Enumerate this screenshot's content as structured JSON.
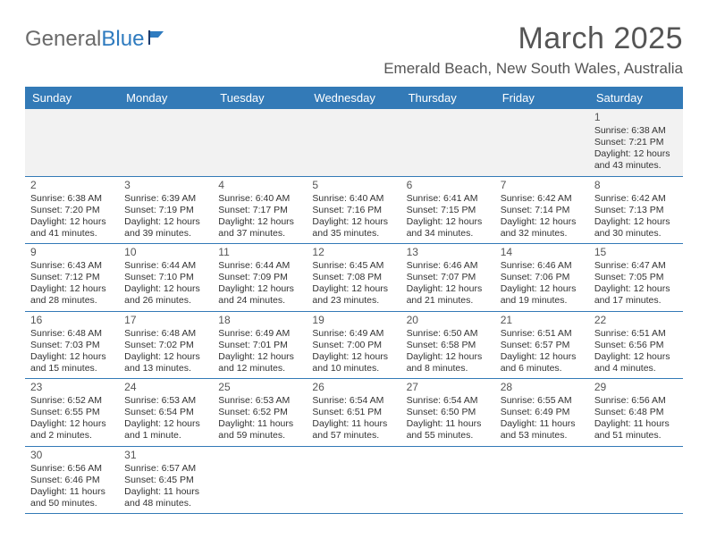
{
  "logo": {
    "word1": "General",
    "word2": "Blue"
  },
  "title": "March 2025",
  "location": "Emerald Beach, New South Wales, Australia",
  "colors": {
    "header_bg": "#337ab7",
    "header_text": "#ffffff",
    "border": "#337ab7",
    "title_text": "#555555",
    "body_text": "#333333",
    "logo_gray": "#6a6a6a",
    "logo_blue": "#2f7bbf",
    "blank_bg": "#f2f2f2"
  },
  "day_headers": [
    "Sunday",
    "Monday",
    "Tuesday",
    "Wednesday",
    "Thursday",
    "Friday",
    "Saturday"
  ],
  "weeks": [
    [
      null,
      null,
      null,
      null,
      null,
      null,
      {
        "n": "1",
        "sr": "Sunrise: 6:38 AM",
        "ss": "Sunset: 7:21 PM",
        "dl": "Daylight: 12 hours and 43 minutes."
      }
    ],
    [
      {
        "n": "2",
        "sr": "Sunrise: 6:38 AM",
        "ss": "Sunset: 7:20 PM",
        "dl": "Daylight: 12 hours and 41 minutes."
      },
      {
        "n": "3",
        "sr": "Sunrise: 6:39 AM",
        "ss": "Sunset: 7:19 PM",
        "dl": "Daylight: 12 hours and 39 minutes."
      },
      {
        "n": "4",
        "sr": "Sunrise: 6:40 AM",
        "ss": "Sunset: 7:17 PM",
        "dl": "Daylight: 12 hours and 37 minutes."
      },
      {
        "n": "5",
        "sr": "Sunrise: 6:40 AM",
        "ss": "Sunset: 7:16 PM",
        "dl": "Daylight: 12 hours and 35 minutes."
      },
      {
        "n": "6",
        "sr": "Sunrise: 6:41 AM",
        "ss": "Sunset: 7:15 PM",
        "dl": "Daylight: 12 hours and 34 minutes."
      },
      {
        "n": "7",
        "sr": "Sunrise: 6:42 AM",
        "ss": "Sunset: 7:14 PM",
        "dl": "Daylight: 12 hours and 32 minutes."
      },
      {
        "n": "8",
        "sr": "Sunrise: 6:42 AM",
        "ss": "Sunset: 7:13 PM",
        "dl": "Daylight: 12 hours and 30 minutes."
      }
    ],
    [
      {
        "n": "9",
        "sr": "Sunrise: 6:43 AM",
        "ss": "Sunset: 7:12 PM",
        "dl": "Daylight: 12 hours and 28 minutes."
      },
      {
        "n": "10",
        "sr": "Sunrise: 6:44 AM",
        "ss": "Sunset: 7:10 PM",
        "dl": "Daylight: 12 hours and 26 minutes."
      },
      {
        "n": "11",
        "sr": "Sunrise: 6:44 AM",
        "ss": "Sunset: 7:09 PM",
        "dl": "Daylight: 12 hours and 24 minutes."
      },
      {
        "n": "12",
        "sr": "Sunrise: 6:45 AM",
        "ss": "Sunset: 7:08 PM",
        "dl": "Daylight: 12 hours and 23 minutes."
      },
      {
        "n": "13",
        "sr": "Sunrise: 6:46 AM",
        "ss": "Sunset: 7:07 PM",
        "dl": "Daylight: 12 hours and 21 minutes."
      },
      {
        "n": "14",
        "sr": "Sunrise: 6:46 AM",
        "ss": "Sunset: 7:06 PM",
        "dl": "Daylight: 12 hours and 19 minutes."
      },
      {
        "n": "15",
        "sr": "Sunrise: 6:47 AM",
        "ss": "Sunset: 7:05 PM",
        "dl": "Daylight: 12 hours and 17 minutes."
      }
    ],
    [
      {
        "n": "16",
        "sr": "Sunrise: 6:48 AM",
        "ss": "Sunset: 7:03 PM",
        "dl": "Daylight: 12 hours and 15 minutes."
      },
      {
        "n": "17",
        "sr": "Sunrise: 6:48 AM",
        "ss": "Sunset: 7:02 PM",
        "dl": "Daylight: 12 hours and 13 minutes."
      },
      {
        "n": "18",
        "sr": "Sunrise: 6:49 AM",
        "ss": "Sunset: 7:01 PM",
        "dl": "Daylight: 12 hours and 12 minutes."
      },
      {
        "n": "19",
        "sr": "Sunrise: 6:49 AM",
        "ss": "Sunset: 7:00 PM",
        "dl": "Daylight: 12 hours and 10 minutes."
      },
      {
        "n": "20",
        "sr": "Sunrise: 6:50 AM",
        "ss": "Sunset: 6:58 PM",
        "dl": "Daylight: 12 hours and 8 minutes."
      },
      {
        "n": "21",
        "sr": "Sunrise: 6:51 AM",
        "ss": "Sunset: 6:57 PM",
        "dl": "Daylight: 12 hours and 6 minutes."
      },
      {
        "n": "22",
        "sr": "Sunrise: 6:51 AM",
        "ss": "Sunset: 6:56 PM",
        "dl": "Daylight: 12 hours and 4 minutes."
      }
    ],
    [
      {
        "n": "23",
        "sr": "Sunrise: 6:52 AM",
        "ss": "Sunset: 6:55 PM",
        "dl": "Daylight: 12 hours and 2 minutes."
      },
      {
        "n": "24",
        "sr": "Sunrise: 6:53 AM",
        "ss": "Sunset: 6:54 PM",
        "dl": "Daylight: 12 hours and 1 minute."
      },
      {
        "n": "25",
        "sr": "Sunrise: 6:53 AM",
        "ss": "Sunset: 6:52 PM",
        "dl": "Daylight: 11 hours and 59 minutes."
      },
      {
        "n": "26",
        "sr": "Sunrise: 6:54 AM",
        "ss": "Sunset: 6:51 PM",
        "dl": "Daylight: 11 hours and 57 minutes."
      },
      {
        "n": "27",
        "sr": "Sunrise: 6:54 AM",
        "ss": "Sunset: 6:50 PM",
        "dl": "Daylight: 11 hours and 55 minutes."
      },
      {
        "n": "28",
        "sr": "Sunrise: 6:55 AM",
        "ss": "Sunset: 6:49 PM",
        "dl": "Daylight: 11 hours and 53 minutes."
      },
      {
        "n": "29",
        "sr": "Sunrise: 6:56 AM",
        "ss": "Sunset: 6:48 PM",
        "dl": "Daylight: 11 hours and 51 minutes."
      }
    ],
    [
      {
        "n": "30",
        "sr": "Sunrise: 6:56 AM",
        "ss": "Sunset: 6:46 PM",
        "dl": "Daylight: 11 hours and 50 minutes."
      },
      {
        "n": "31",
        "sr": "Sunrise: 6:57 AM",
        "ss": "Sunset: 6:45 PM",
        "dl": "Daylight: 11 hours and 48 minutes."
      },
      null,
      null,
      null,
      null,
      null
    ]
  ]
}
